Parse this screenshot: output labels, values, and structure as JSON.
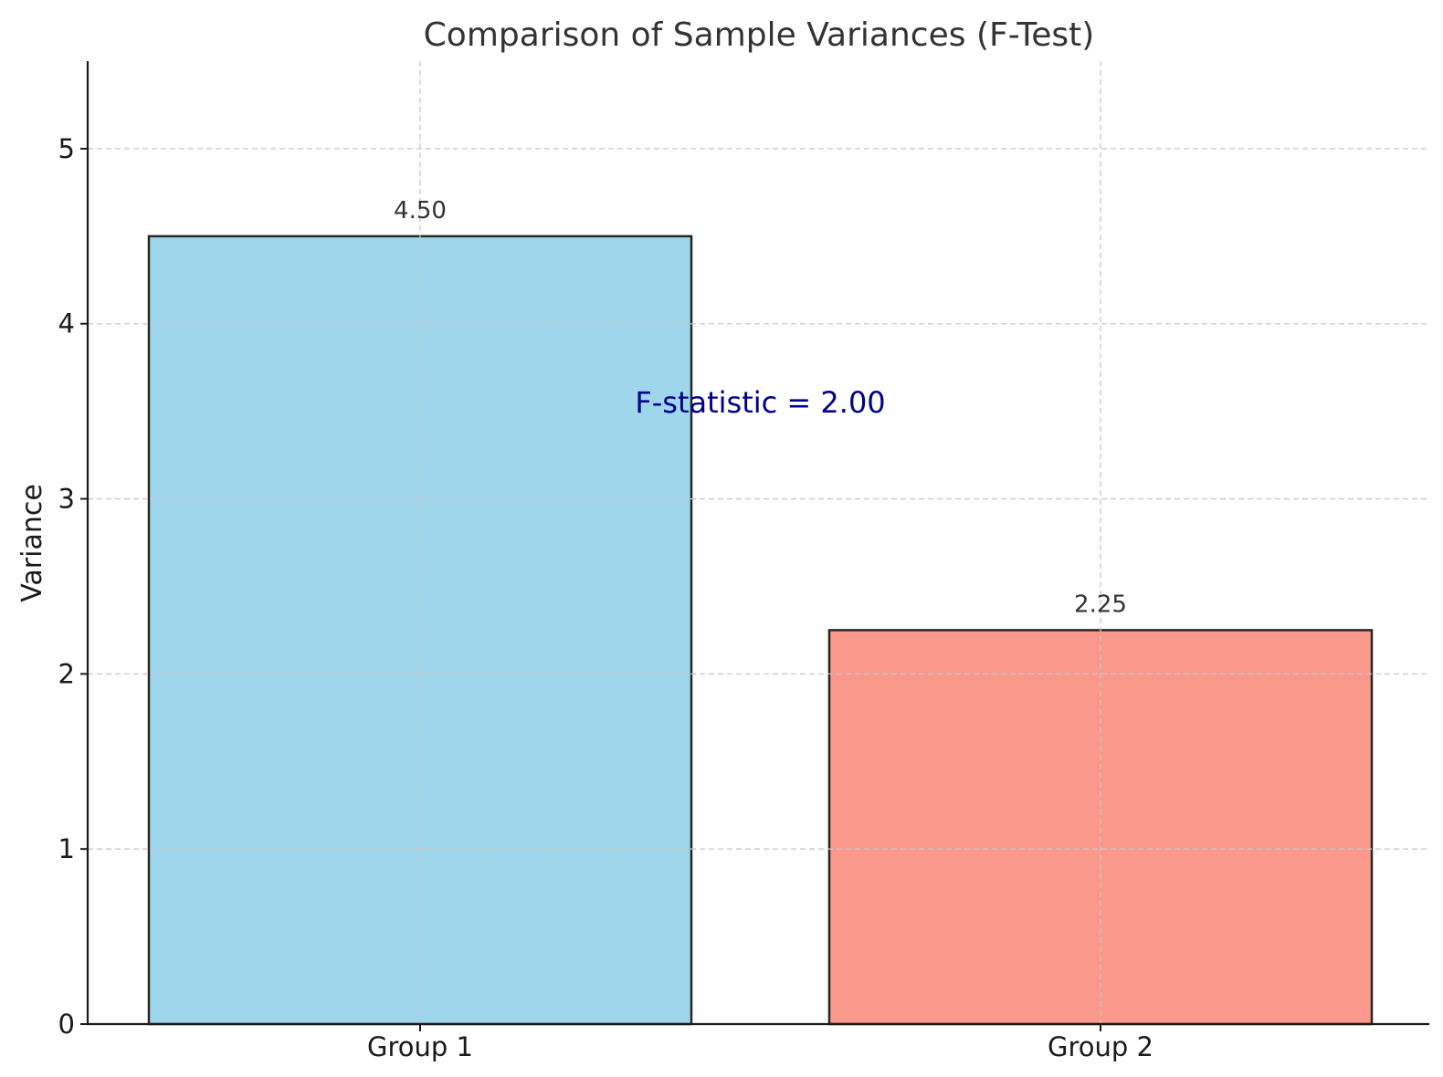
{
  "chart_data": {
    "type": "bar",
    "title": "Comparison of Sample Variances (F-Test)",
    "xlabel": "",
    "ylabel": "Variance",
    "categories": [
      "Group 1",
      "Group 2"
    ],
    "values": [
      4.5,
      2.25
    ],
    "data_labels": [
      "4.50",
      "2.25"
    ],
    "bar_colors": [
      "#a0d6ec",
      "#fa988b"
    ],
    "bar_edge_color": "#262626",
    "ylim": [
      0,
      5.5
    ],
    "yticks": [
      0,
      1,
      2,
      3,
      4,
      5
    ],
    "ytick_labels": [
      "0",
      "1",
      "2",
      "3",
      "4",
      "5"
    ],
    "grid": true,
    "annotation": {
      "text": "F-statistic = 2.00",
      "x_category_index": 0.5,
      "y": 3.55,
      "color": "#00008b"
    }
  }
}
